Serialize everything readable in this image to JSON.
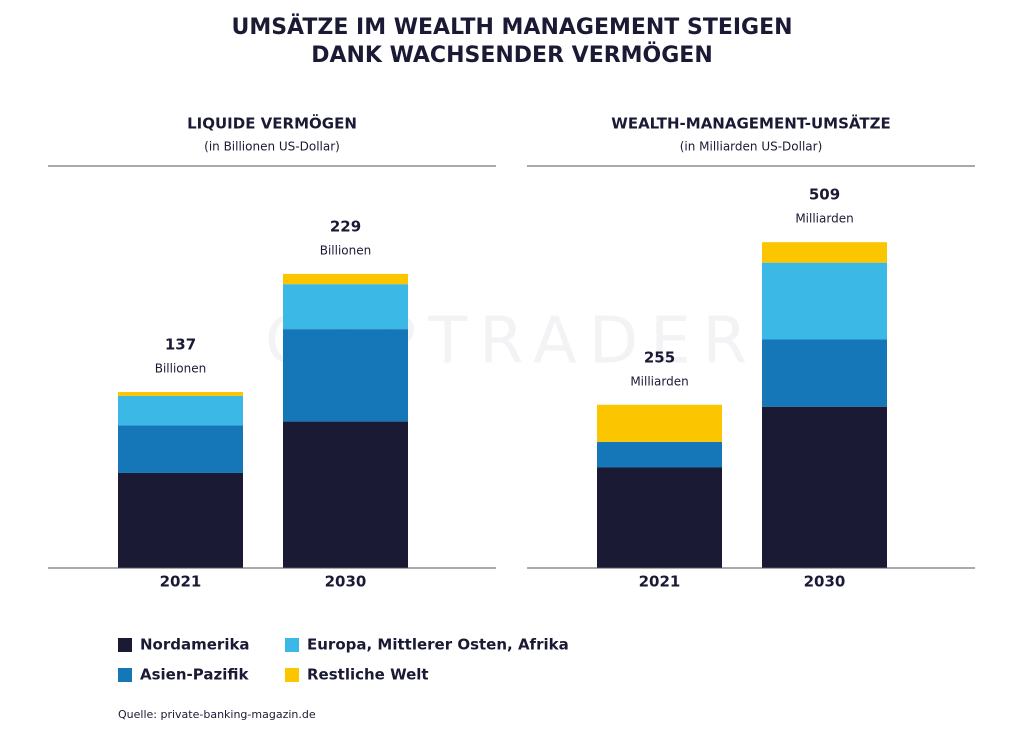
{
  "title": [
    "UMSÄTZE IM WEALTH MANAGEMENT STEIGEN",
    "DANK WACHSENDER VERMÖGEN"
  ],
  "watermark": "CAPTRADER",
  "source": "Quelle: private-banking-magazin.de",
  "chart_data": [
    {
      "type": "bar",
      "stacked": true,
      "title": "LIQUIDE VERMÖGEN",
      "subtitle": "(in Billionen US-Dollar)",
      "categories": [
        "2021",
        "2030"
      ],
      "ylim": [
        0,
        313
      ],
      "totals": [
        137,
        229
      ],
      "total_unit": "Billionen",
      "series": [
        {
          "name": "Nordamerika",
          "color": "#1a1a35",
          "values": [
            74,
            114
          ]
        },
        {
          "name": "Asien-Pazifik",
          "color": "#1677b8",
          "values": [
            37,
            72
          ]
        },
        {
          "name": "Europa, Mittlerer Osten, Afrika",
          "color": "#3bb8e6",
          "values": [
            23,
            35
          ]
        },
        {
          "name": "Restliche Welt",
          "color": "#fbc500",
          "values": [
            3,
            8
          ]
        }
      ]
    },
    {
      "type": "bar",
      "stacked": true,
      "title": "WEALTH-MANAGEMENT-UMSÄTZE",
      "subtitle": "(in Milliarden US-Dollar)",
      "categories": [
        "2021",
        "2030"
      ],
      "ylim": [
        0,
        628
      ],
      "totals": [
        255,
        509
      ],
      "total_unit": "Milliarden",
      "series": [
        {
          "color": "#1a1a35",
          "values": [
            157,
            252
          ]
        },
        {
          "color": "#1677b8",
          "values": [
            40,
            105
          ]
        },
        {
          "color": "#3bb8e6",
          "values": [
            0,
            120
          ]
        },
        {
          "color": "#fbc500",
          "values": [
            58,
            32
          ]
        }
      ]
    }
  ]
}
